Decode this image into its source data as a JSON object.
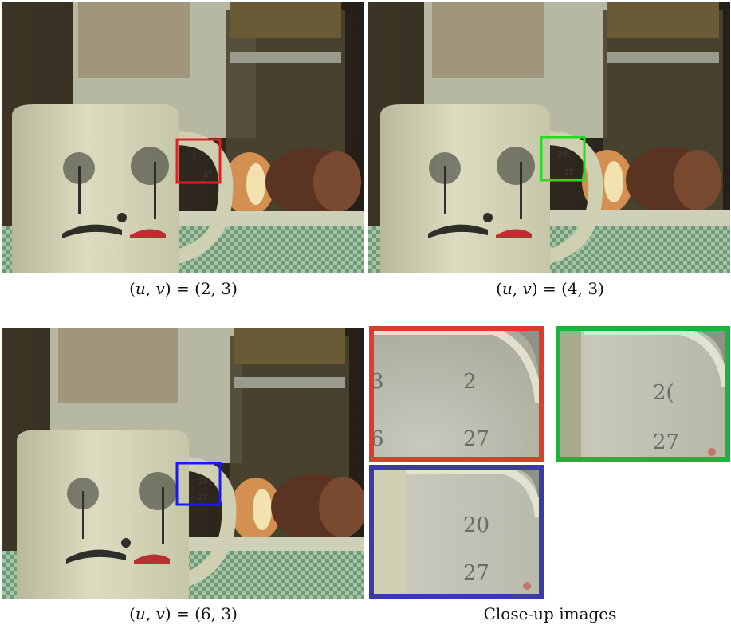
{
  "figure": {
    "panels": [
      {
        "id": "p1",
        "caption_prefix": "(",
        "u_sym": "u",
        "v_sym": "v",
        "caption_mid": ") = (2, 3)",
        "highlight_color": "#e02020",
        "calendar_text_top": "2",
        "calendar_text_bottom": "27"
      },
      {
        "id": "p2",
        "caption_prefix": "(",
        "u_sym": "u",
        "v_sym": "v",
        "caption_mid": ") = (4, 3)",
        "highlight_color": "#22dd22",
        "calendar_text_top": "20",
        "calendar_text_bottom": "27"
      },
      {
        "id": "p3",
        "caption_prefix": "(",
        "u_sym": "u",
        "v_sym": "v",
        "caption_mid": ") = (6, 3)",
        "highlight_color": "#1a1aee",
        "calendar_text_top": "20",
        "calendar_text_bottom": "27"
      }
    ],
    "closeups": [
      {
        "id": "c-red",
        "border_color": "#e03a2a",
        "left_digit": "3",
        "top_num": "2",
        "left_bottom": "6",
        "bottom_num": "27"
      },
      {
        "id": "c-green",
        "border_color": "#19b43c",
        "top_num": "2(",
        "bottom_num": "27"
      },
      {
        "id": "c-blue",
        "border_color": "#3a3aa8",
        "top_num": "20",
        "bottom_num": "27"
      }
    ],
    "closeup_caption": "Close-up images"
  }
}
